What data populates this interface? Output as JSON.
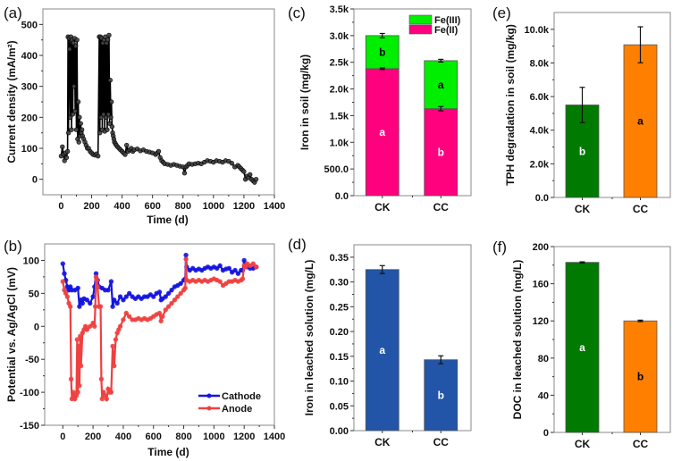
{
  "chart_data": [
    {
      "id": "a",
      "panel_label": "(a)",
      "type": "line",
      "title": "",
      "xlabel": "Time (d)",
      "ylabel": "Current density (mA/m²)",
      "xlim": [
        -120,
        1400
      ],
      "ylim": [
        -50,
        550
      ],
      "xticks": [
        0,
        200,
        400,
        600,
        800,
        1000,
        1200,
        1400
      ],
      "yticks": [
        0,
        100,
        200,
        300,
        400,
        500
      ],
      "series": [
        {
          "name": "Current density",
          "color": "#000000",
          "x": [
            0,
            8,
            15,
            22,
            28,
            35,
            42,
            45,
            48,
            52,
            56,
            60,
            64,
            68,
            72,
            76,
            80,
            84,
            88,
            92,
            96,
            100,
            104,
            108,
            112,
            116,
            120,
            124,
            128,
            132,
            136,
            140,
            148,
            156,
            164,
            172,
            180,
            190,
            200,
            210,
            222,
            232,
            242,
            250,
            254,
            258,
            262,
            266,
            270,
            274,
            278,
            282,
            286,
            290,
            294,
            298,
            302,
            306,
            310,
            314,
            318,
            322,
            326,
            330,
            334,
            338,
            342,
            346,
            350,
            356,
            362,
            370,
            380,
            390,
            400,
            410,
            420,
            430,
            440,
            450,
            460,
            470,
            480,
            500,
            520,
            540,
            560,
            580,
            600,
            620,
            630,
            640,
            650,
            660,
            670,
            680,
            700,
            720,
            740,
            760,
            780,
            800,
            810,
            820,
            830,
            840,
            860,
            880,
            900,
            920,
            940,
            960,
            980,
            1000,
            1020,
            1040,
            1060,
            1080,
            1100,
            1120,
            1140,
            1160,
            1170,
            1180,
            1190,
            1200,
            1210,
            1220,
            1230,
            1240,
            1250,
            1260,
            1270,
            1280
          ],
          "y": [
            75,
            105,
            80,
            60,
            85,
            70,
            90,
            460,
            150,
            455,
            420,
            200,
            460,
            160,
            450,
            210,
            440,
            300,
            455,
            220,
            430,
            160,
            450,
            130,
            250,
            120,
            200,
            140,
            180,
            150,
            160,
            140,
            130,
            120,
            110,
            100,
            100,
            90,
            85,
            80,
            78,
            82,
            75,
            460,
            150,
            460,
            200,
            455,
            160,
            440,
            210,
            450,
            155,
            460,
            200,
            440,
            160,
            450,
            210,
            465,
            180,
            320,
            200,
            250,
            170,
            150,
            140,
            130,
            120,
            115,
            110,
            105,
            100,
            95,
            90,
            85,
            80,
            110,
            90,
            95,
            100,
            90,
            95,
            98,
            92,
            95,
            90,
            88,
            85,
            80,
            85,
            90,
            70,
            60,
            55,
            50,
            48,
            45,
            48,
            45,
            42,
            40,
            20,
            40,
            45,
            50,
            48,
            50,
            52,
            50,
            55,
            60,
            58,
            55,
            60,
            58,
            55,
            60,
            58,
            52,
            40,
            45,
            40,
            35,
            30,
            25,
            0,
            10,
            5,
            15,
            0,
            -5,
            -10,
            0
          ]
        }
      ]
    },
    {
      "id": "b",
      "panel_label": "(b)",
      "type": "line",
      "title": "",
      "xlabel": "Time (d)",
      "ylabel": "Potential vs. Ag/AgCl (mV)",
      "xlim": [
        -120,
        1400
      ],
      "ylim": [
        -150,
        125
      ],
      "xticks": [
        0,
        200,
        400,
        600,
        800,
        1000,
        1200,
        1400
      ],
      "yticks": [
        -150,
        -100,
        -50,
        0,
        50,
        100
      ],
      "legend": {
        "placement": "bottom-right",
        "entries": [
          "Cathode",
          "Anode"
        ]
      },
      "series": [
        {
          "name": "Cathode",
          "color": "#1515e0",
          "x": [
            0,
            10,
            20,
            30,
            40,
            50,
            60,
            80,
            100,
            110,
            120,
            130,
            140,
            160,
            180,
            200,
            210,
            220,
            230,
            240,
            260,
            280,
            300,
            320,
            330,
            340,
            360,
            380,
            400,
            420,
            440,
            460,
            480,
            500,
            520,
            540,
            560,
            580,
            600,
            620,
            640,
            650,
            660,
            680,
            700,
            720,
            740,
            760,
            780,
            800,
            810,
            815,
            820,
            840,
            860,
            880,
            900,
            920,
            940,
            960,
            980,
            1000,
            1020,
            1040,
            1060,
            1080,
            1100,
            1120,
            1140,
            1160,
            1180,
            1190,
            1200,
            1210,
            1220,
            1240,
            1260,
            1280
          ],
          "y": [
            95,
            80,
            70,
            60,
            55,
            60,
            55,
            55,
            58,
            30,
            40,
            35,
            42,
            40,
            35,
            45,
            60,
            80,
            70,
            60,
            58,
            55,
            55,
            68,
            30,
            40,
            35,
            45,
            40,
            45,
            50,
            45,
            42,
            45,
            42,
            45,
            45,
            48,
            45,
            50,
            52,
            40,
            42,
            45,
            50,
            55,
            60,
            62,
            65,
            70,
            72,
            108,
            90,
            85,
            88,
            85,
            87,
            85,
            88,
            90,
            88,
            90,
            88,
            92,
            85,
            87,
            88,
            82,
            85,
            80,
            85,
            85,
            100,
            92,
            90,
            88,
            88,
            90
          ]
        },
        {
          "name": "Anode",
          "color": "#f04040",
          "x": [
            0,
            10,
            20,
            30,
            40,
            50,
            55,
            60,
            70,
            80,
            90,
            95,
            100,
            105,
            110,
            115,
            120,
            130,
            140,
            150,
            160,
            180,
            200,
            210,
            215,
            220,
            225,
            230,
            240,
            250,
            255,
            260,
            270,
            280,
            290,
            300,
            310,
            320,
            330,
            340,
            350,
            360,
            370,
            380,
            400,
            420,
            440,
            460,
            480,
            500,
            520,
            540,
            560,
            580,
            600,
            620,
            640,
            650,
            660,
            680,
            700,
            720,
            740,
            760,
            780,
            800,
            810,
            815,
            820,
            840,
            860,
            880,
            900,
            920,
            940,
            960,
            980,
            1000,
            1020,
            1040,
            1060,
            1080,
            1100,
            1120,
            1140,
            1160,
            1180,
            1190,
            1200,
            1210,
            1220,
            1240,
            1260,
            1280
          ],
          "y": [
            68,
            55,
            50,
            45,
            35,
            30,
            -80,
            -110,
            -100,
            -110,
            -105,
            -20,
            -100,
            -30,
            -90,
            -15,
            -60,
            -10,
            -5,
            0,
            -5,
            0,
            5,
            0,
            30,
            75,
            70,
            60,
            30,
            30,
            -80,
            -110,
            -100,
            -105,
            -110,
            -95,
            -100,
            -100,
            -30,
            -60,
            -20,
            -10,
            -5,
            0,
            10,
            20,
            15,
            10,
            10,
            12,
            10,
            12,
            10,
            12,
            15,
            18,
            20,
            8,
            15,
            25,
            30,
            35,
            40,
            45,
            50,
            55,
            58,
            102,
            70,
            68,
            70,
            68,
            70,
            68,
            70,
            68,
            70,
            72,
            70,
            68,
            62,
            65,
            68,
            68,
            70,
            68,
            70,
            72,
            92,
            90,
            95,
            92,
            95,
            90
          ]
        }
      ]
    },
    {
      "id": "c",
      "panel_label": "(c)",
      "type": "bar",
      "stacked": true,
      "title": "",
      "xlabel": "",
      "ylabel": "Iron in soil (mg/kg)",
      "categories": [
        "CK",
        "CC"
      ],
      "ylim": [
        0,
        3500
      ],
      "yticks": [
        0,
        500,
        1000,
        1500,
        2000,
        2500,
        3000,
        3500
      ],
      "ytick_labels": [
        "0.0",
        "500.0",
        "1.0k",
        "1.5k",
        "2.0k",
        "2.5k",
        "3.0k",
        "3.5k"
      ],
      "legend": {
        "placement": "top-right",
        "entries": [
          "Fe(III)",
          "Fe(II)"
        ]
      },
      "series": [
        {
          "name": "Fe(II)",
          "color": "#ff007f",
          "values": [
            2380,
            1630
          ],
          "errors": [
            15,
            40
          ],
          "letters": [
            "a",
            "b"
          ],
          "letter_color": "#ffffff"
        },
        {
          "name": "Fe(III)",
          "color": "#00ee00",
          "values": [
            620,
            900
          ],
          "totals": [
            3000,
            2530
          ],
          "errors": [
            40,
            25
          ],
          "letters": [
            "b",
            "a"
          ],
          "letter_color": "#000000"
        }
      ]
    },
    {
      "id": "d",
      "panel_label": "(d)",
      "type": "bar",
      "title": "",
      "xlabel": "",
      "ylabel": "Iron in leached solution (mg/L)",
      "categories": [
        "CK",
        "CC"
      ],
      "ylim": [
        0,
        0.375
      ],
      "yticks": [
        0,
        0.05,
        0.1,
        0.15,
        0.2,
        0.25,
        0.3,
        0.35
      ],
      "ytick_labels": [
        "0.00",
        "0.05",
        "0.10",
        "0.15",
        "0.20",
        "0.25",
        "0.30",
        "0.35"
      ],
      "series": [
        {
          "name": "Iron",
          "colors": [
            "#2255a8",
            "#2255a8"
          ],
          "values": [
            0.325,
            0.143
          ],
          "errors": [
            0.008,
            0.008
          ],
          "letters": [
            "a",
            "b"
          ],
          "letter_colors": [
            "#ffffff",
            "#ffffff"
          ]
        }
      ]
    },
    {
      "id": "e",
      "panel_label": "(e)",
      "type": "bar",
      "title": "",
      "xlabel": "",
      "ylabel": "TPH degradation in soil (mg/kg)",
      "categories": [
        "CK",
        "CC"
      ],
      "ylim": [
        0,
        11000
      ],
      "yticks": [
        0,
        2000,
        4000,
        6000,
        8000,
        10000
      ],
      "ytick_labels": [
        "0.0",
        "2.0k",
        "4.0k",
        "6.0k",
        "8.0k",
        "10.0k"
      ],
      "series": [
        {
          "name": "TPH degradation",
          "colors": [
            "#007a00",
            "#ff8000"
          ],
          "values": [
            5500,
            9080
          ],
          "errors": [
            1050,
            1070
          ],
          "letters": [
            "b",
            "a"
          ],
          "letter_colors": [
            "#ffffff",
            "#000000"
          ]
        }
      ]
    },
    {
      "id": "f",
      "panel_label": "(f)",
      "type": "bar",
      "title": "",
      "xlabel": "",
      "ylabel": "DOC in leached solution (mg/L)",
      "categories": [
        "CK",
        "CC"
      ],
      "ylim": [
        0,
        200
      ],
      "yticks": [
        0,
        40,
        80,
        120,
        160,
        200
      ],
      "ytick_labels": [
        "0",
        "40",
        "80",
        "120",
        "160",
        "200"
      ],
      "series": [
        {
          "name": "DOC",
          "colors": [
            "#007a00",
            "#ff8000"
          ],
          "values": [
            183,
            120
          ],
          "errors": [
            0.6,
            0.8
          ],
          "letters": [
            "a",
            "b"
          ],
          "letter_colors": [
            "#ffffff",
            "#000000"
          ]
        }
      ]
    }
  ]
}
